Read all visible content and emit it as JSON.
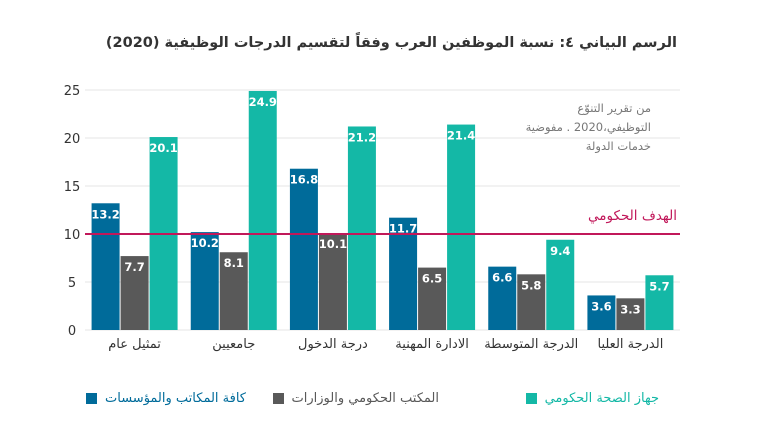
{
  "title": "الرسم البياني ٤: نسبة الموظفين العرب وفقاً لتقسيم الدرجات الوظيفية (2020)",
  "source_note": [
    "من تقرير التنوّع",
    "التوظيفي،2020 . مفوضية",
    "خدمات الدولة"
  ],
  "colors": {
    "all_offices": "#006b9a",
    "gov_offices": "#595959",
    "health": "#14b8a6",
    "target_line": "#c1185a",
    "grid": "#e6e6e6",
    "axis_text": "#333333"
  },
  "chart_data": {
    "type": "bar",
    "categories": [
      "تمثيل عام",
      "جامعيين",
      "درجة الدخول",
      "الادارة المهنية",
      "الدرجة المتوسطة",
      "الدرجة العليا"
    ],
    "series": [
      {
        "name": "كافة المكاتب والمؤسسات",
        "color": "#006b9a",
        "values": [
          13.2,
          10.2,
          16.8,
          11.7,
          6.6,
          3.6
        ]
      },
      {
        "name": "المكتب الحكومي والوزارات",
        "color": "#595959",
        "values": [
          7.7,
          8.1,
          10.1,
          6.5,
          5.8,
          3.3
        ]
      },
      {
        "name": "جهاز الصحة الحكومي",
        "color": "#14b8a6",
        "values": [
          20.1,
          24.9,
          21.2,
          21.4,
          9.4,
          5.7
        ]
      }
    ],
    "y_ticks": [
      "0",
      "5",
      "10",
      "15",
      "20",
      "25"
    ],
    "ylim": [
      0,
      25
    ],
    "grid": true,
    "target_line": {
      "value": 10,
      "label": "الهدف الحكومي"
    },
    "legend_position": "bottom"
  }
}
